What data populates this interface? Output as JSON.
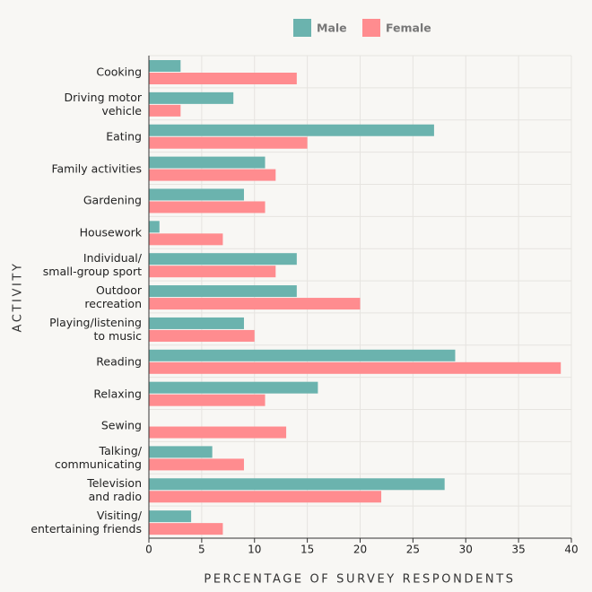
{
  "chart_data": {
    "type": "hbar",
    "x_label": "PERCENTAGE OF SURVEY RESPONDENTS",
    "y_label": "ACTIVITY",
    "categories": [
      "Cooking",
      "Driving motor\nvehicle",
      "Eating",
      "Family activities",
      "Gardening",
      "Housework",
      "Individual/\nsmall-group sport",
      "Outdoor\nrecreation",
      "Playing/listening\nto music",
      "Reading",
      "Relaxing",
      "Sewing",
      "Talking/\ncommunicating",
      "Television\nand radio",
      "Visiting/\nentertaining friends"
    ],
    "series": [
      {
        "name": "Male",
        "color": "#6bb3ae",
        "values": [
          3,
          8,
          27,
          11,
          9,
          1,
          14,
          14,
          9,
          29,
          16,
          0,
          6,
          28,
          4
        ]
      },
      {
        "name": "Female",
        "color": "#ff8c8f",
        "values": [
          14,
          3,
          15,
          12,
          11,
          7,
          12,
          20,
          10,
          39,
          11,
          13,
          9,
          22,
          7
        ]
      }
    ],
    "xlim": [
      0,
      40
    ],
    "xticks": [
      0,
      5,
      10,
      15,
      20,
      25,
      30,
      35,
      40
    ],
    "grid": true
  }
}
